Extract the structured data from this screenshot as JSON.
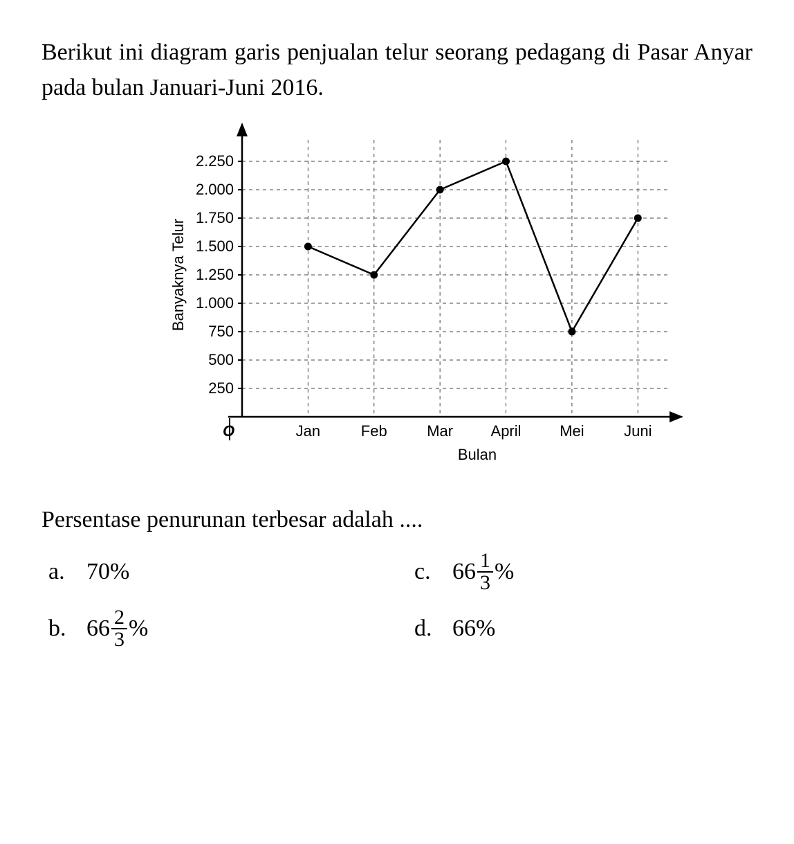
{
  "question": {
    "intro": "Berikut ini diagram garis penjualan telur seorang pedagang di Pasar Anyar pada bulan Januari-Juni 2016.",
    "prompt": "Persentase penurunan terbesar adalah ...."
  },
  "chart": {
    "type": "line",
    "x_axis_label": "Bulan",
    "y_axis_label": "Banyaknya Telur",
    "origin_label": "O",
    "categories": [
      "Jan",
      "Feb",
      "Mar",
      "April",
      "Mei",
      "Juni"
    ],
    "values": [
      1500,
      1250,
      2000,
      2250,
      750,
      1750
    ],
    "y_ticks": [
      250,
      500,
      750,
      1000,
      1250,
      1500,
      1750,
      2000,
      2250
    ],
    "y_range": [
      0,
      2500
    ],
    "colors": {
      "background": "#ffffff",
      "axis": "#000000",
      "line": "#000000",
      "marker": "#000000",
      "grid": "#444444",
      "text": "#000000"
    },
    "line_width": 2.5,
    "marker_radius": 5.5,
    "grid_dash": "5,5",
    "axis_fontsize": 22,
    "tick_fontsize": 22,
    "label_fontsize": 22,
    "arrow_size": 12
  },
  "options": {
    "a": {
      "letter": "a.",
      "int": "70",
      "num": "",
      "den": "",
      "suffix": "%"
    },
    "b": {
      "letter": "b.",
      "int": "66",
      "num": "2",
      "den": "3",
      "suffix": "%"
    },
    "c": {
      "letter": "c.",
      "int": "66",
      "num": "1",
      "den": "3",
      "suffix": "%"
    },
    "d": {
      "letter": "d.",
      "int": "66",
      "num": "",
      "den": "",
      "suffix": "%"
    }
  }
}
